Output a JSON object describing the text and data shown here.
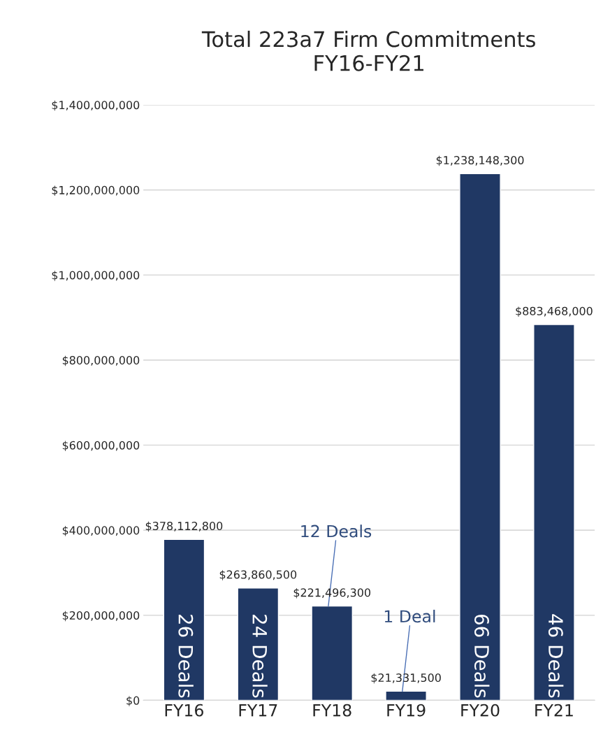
{
  "chart_data": {
    "type": "bar",
    "title": "Total 223a7 Firm Commitments\nFY16-FY21",
    "categories": [
      "FY16",
      "FY17",
      "FY18",
      "FY19",
      "FY20",
      "FY21"
    ],
    "values": [
      378112800,
      263860500,
      221496300,
      21331500,
      1238148300,
      883468000
    ],
    "value_labels": [
      "$378,112,800",
      "$263,860,500",
      "$221,496,300",
      "$21,331,500",
      "$1,238,148,300",
      "$883,468,000"
    ],
    "color": "#203864",
    "ylim": [
      0,
      1400000000
    ],
    "yticks": [
      {
        "value": 0,
        "label": "$0"
      },
      {
        "value": 200000000,
        "label": "$200,000,000"
      },
      {
        "value": 400000000,
        "label": "$400,000,000"
      },
      {
        "value": 600000000,
        "label": "$600,000,000"
      },
      {
        "value": 800000000,
        "label": "$800,000,000"
      },
      {
        "value": 1000000000,
        "label": "$1,000,000,000"
      },
      {
        "value": 1200000000,
        "label": "$1,200,000,000"
      },
      {
        "value": 1400000000,
        "label": "$1,400,000,000"
      }
    ],
    "grid": "y",
    "annotations": [
      "26 Deals",
      "24 Deals",
      {
        "text": "12 Deals",
        "x": "FY18",
        "y": 221496300
      },
      {
        "text": "1 Deal",
        "x": "FY19",
        "y": 21331500
      },
      "66 Deals",
      "46 Deals"
    ]
  }
}
